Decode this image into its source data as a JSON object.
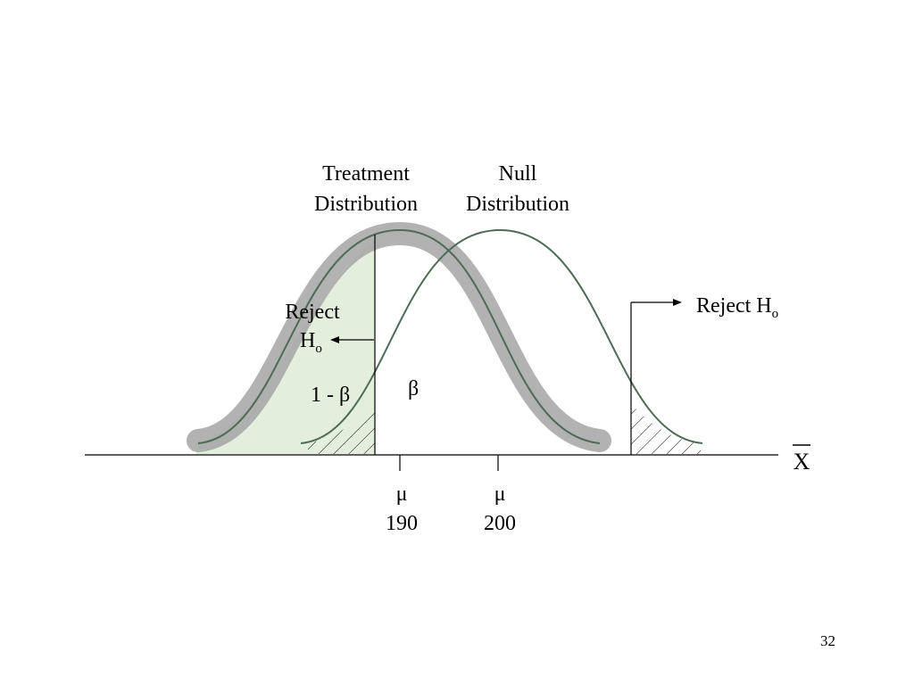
{
  "diagram": {
    "treatment_label": [
      "Treatment",
      "Distribution"
    ],
    "null_label": [
      "Null",
      "Distribution"
    ],
    "reject_left": {
      "line1": "Reject",
      "h": "H",
      "sub": "o"
    },
    "reject_right": {
      "text": "Reject H",
      "sub": "o"
    },
    "power_label": "1 - β",
    "beta_label": "β",
    "mean_symbol": "μ",
    "treatment_mean": "190",
    "null_mean": "200",
    "axis_label": "X"
  },
  "slide_number": "32",
  "colors": {
    "curve": "#4e6b55",
    "highlight": "#a5a5a5",
    "power_fill": "#e3eedd",
    "line": "#000000"
  }
}
